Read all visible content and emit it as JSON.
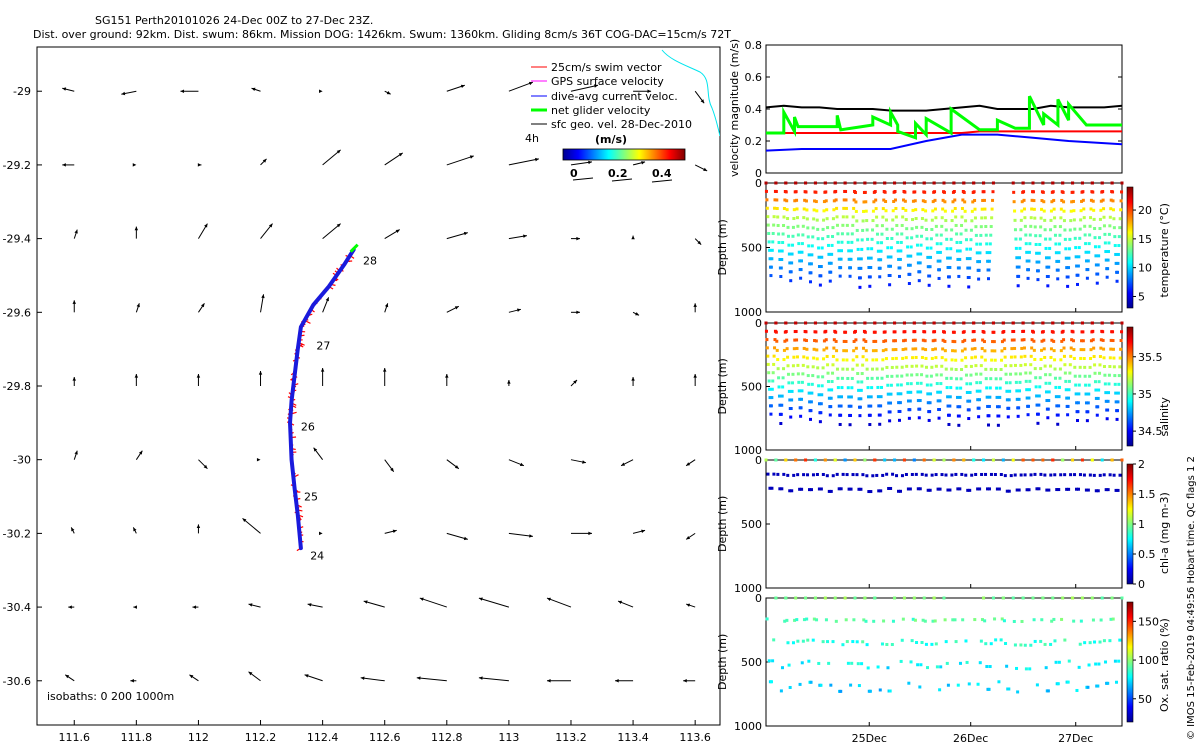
{
  "title": {
    "line1": "SG151 Perth20101026 24-Dec 00Z to 27-Dec 23Z.",
    "line2": "Dist. over ground: 92km. Dist. swum: 86km. Mission DOG: 1426km. Swum: 1360km. Gliding 8cm/s 36T COG-DAC=15cm/s 72T"
  },
  "copyright": "© IMOS 15-Feb-2019 04:49:56 Hobart time. QC flags 1  2",
  "colors": {
    "swim": "#ff0000",
    "gps": "#ff00ff",
    "dac": "#0000ff",
    "net": "#00ff00",
    "sfc": "#000000",
    "coast": "#00e5ee",
    "track": "#1a1adc"
  },
  "chart_data": [
    {
      "id": "map",
      "type": "scatter",
      "subtype": "quiver-map",
      "xlim": [
        111.48,
        113.68
      ],
      "ylim": [
        -30.72,
        -28.88
      ],
      "xticks": [
        "111.6",
        "111.8",
        "112",
        "112.2",
        "112.4",
        "112.6",
        "112.8",
        "113",
        "113.2",
        "113.4",
        "113.6"
      ],
      "xtick_values": [
        111.6,
        111.8,
        112.0,
        112.2,
        112.4,
        112.6,
        112.8,
        113.0,
        113.2,
        113.4,
        113.6
      ],
      "yticks": [
        "-29",
        "-29.2",
        "-29.4",
        "-29.6",
        "-29.8",
        "-30",
        "-30.2",
        "-30.4",
        "-30.6"
      ],
      "ytick_values": [
        -29.0,
        -29.2,
        -29.4,
        -29.6,
        -29.8,
        -30.0,
        -30.2,
        -30.4,
        -30.6
      ],
      "legend": [
        {
          "label": "25cm/s swim vector",
          "series": "swim"
        },
        {
          "label": "GPS surface velocity",
          "series": "gps"
        },
        {
          "label": "dive-avg current veloc.",
          "series": "dac"
        },
        {
          "label": "net glider velocity",
          "series": "net"
        },
        {
          "label": "sfc geo. vel. 28-Dec-2010",
          "series": "sfc"
        }
      ],
      "legend_4h": "4h",
      "colorbar": {
        "label": "(m/s)",
        "ticks": [
          "0",
          "0.2",
          "0.4"
        ],
        "tick_values": [
          0,
          0.2,
          0.4
        ],
        "range": [
          0,
          0.5
        ]
      },
      "isobaths_label": "isobaths: 0   200  1000m",
      "track": [
        {
          "lon": 112.33,
          "lat": -30.24
        },
        {
          "lon": 112.32,
          "lat": -30.15
        },
        {
          "lon": 112.31,
          "lat": -30.08
        },
        {
          "lon": 112.3,
          "lat": -30.0
        },
        {
          "lon": 112.295,
          "lat": -29.9
        },
        {
          "lon": 112.3,
          "lat": -29.84
        },
        {
          "lon": 112.31,
          "lat": -29.77
        },
        {
          "lon": 112.32,
          "lat": -29.7
        },
        {
          "lon": 112.33,
          "lat": -29.64
        },
        {
          "lon": 112.37,
          "lat": -29.58
        },
        {
          "lon": 112.42,
          "lat": -29.53
        },
        {
          "lon": 112.47,
          "lat": -29.47
        },
        {
          "lon": 112.5,
          "lat": -29.43
        }
      ],
      "day_labels": [
        {
          "text": "24",
          "lon": 112.36,
          "lat": -30.26
        },
        {
          "text": "25",
          "lon": 112.34,
          "lat": -30.1
        },
        {
          "text": "26",
          "lon": 112.33,
          "lat": -29.91
        },
        {
          "text": "27",
          "lon": 112.38,
          "lat": -29.69
        },
        {
          "text": "28",
          "lon": 112.53,
          "lat": -29.46
        }
      ],
      "sfc_vectors": [
        [
          -0.04,
          0.01,
          -0.05,
          -0.01,
          -0.06,
          0.0,
          -0.03,
          0.01,
          0.0,
          0.0,
          0.02,
          -0.01,
          0.06,
          0.02,
          0.08,
          0.03,
          0.09,
          0.02,
          0.06,
          0.0,
          0.03,
          -0.04
        ],
        [
          -0.04,
          0.0,
          0.0,
          0.0,
          0.01,
          0.0,
          0.02,
          0.02,
          0.06,
          0.05,
          0.06,
          0.04,
          0.09,
          0.03,
          0.1,
          0.02,
          0.07,
          0.01,
          0.04,
          0.01,
          0.04,
          -0.02
        ],
        [
          0.01,
          0.03,
          0.0,
          0.04,
          0.03,
          0.05,
          0.04,
          0.05,
          0.06,
          0.05,
          0.05,
          0.03,
          0.07,
          0.02,
          0.06,
          0.01,
          0.03,
          0.0,
          0.0,
          0.01,
          0.02,
          -0.02
        ],
        [
          0.0,
          0.04,
          0.01,
          0.03,
          0.02,
          0.03,
          0.01,
          0.06,
          0.02,
          0.05,
          0.01,
          0.03,
          0.04,
          0.02,
          0.04,
          0.01,
          0.03,
          0.0,
          0.02,
          -0.01,
          0.0,
          0.03
        ],
        [
          0.0,
          0.03,
          0.0,
          0.04,
          0.0,
          0.04,
          0.0,
          0.05,
          0.0,
          0.06,
          0.0,
          0.06,
          0.0,
          0.04,
          0.0,
          0.02,
          0.02,
          0.02,
          0.0,
          0.03,
          0.0,
          0.04
        ],
        [
          0.01,
          0.03,
          0.02,
          0.03,
          0.03,
          -0.03,
          0.0,
          0.0,
          -0.03,
          0.04,
          0.03,
          -0.04,
          0.04,
          -0.03,
          0.05,
          -0.02,
          0.05,
          -0.01,
          -0.04,
          -0.02,
          -0.03,
          -0.02
        ],
        [
          -0.01,
          0.02,
          -0.01,
          0.02,
          0.0,
          0.03,
          -0.06,
          0.05,
          0.0,
          0.0,
          0.04,
          0.01,
          0.07,
          -0.02,
          0.08,
          -0.01,
          0.07,
          0.0,
          0.04,
          0.01,
          -0.03,
          -0.02
        ],
        [
          -0.02,
          0.0,
          -0.01,
          0.0,
          -0.02,
          0.0,
          -0.04,
          0.01,
          -0.05,
          0.01,
          -0.07,
          0.02,
          -0.09,
          0.03,
          -0.1,
          0.03,
          -0.08,
          0.03,
          -0.05,
          0.02,
          -0.03,
          0.01
        ],
        [
          -0.03,
          0.02,
          -0.02,
          0.0,
          -0.03,
          0.02,
          -0.04,
          0.03,
          -0.06,
          0.02,
          -0.08,
          0.01,
          -0.1,
          0.01,
          -0.1,
          0.01,
          -0.08,
          0.0,
          -0.06,
          0.0,
          -0.04,
          0.0
        ]
      ]
    },
    {
      "id": "velocity",
      "type": "line",
      "ylabel": "velocity magnitude (m/s)",
      "xlim": [
        0,
        1
      ],
      "ylim": [
        0,
        0.8
      ],
      "yticks": [
        "0",
        "0.2",
        "0.4",
        "0.6",
        "0.8"
      ],
      "ytick_values": [
        0,
        0.2,
        0.4,
        0.6,
        0.8
      ],
      "series": [
        {
          "name": "sfc geo. vel.",
          "color": "#000000",
          "x": [
            0,
            0.05,
            0.1,
            0.15,
            0.2,
            0.25,
            0.3,
            0.35,
            0.4,
            0.45,
            0.5,
            0.55,
            0.6,
            0.65,
            0.7,
            0.75,
            0.8,
            0.85,
            0.9,
            0.95,
            1
          ],
          "y": [
            0.41,
            0.42,
            0.41,
            0.41,
            0.4,
            0.4,
            0.4,
            0.39,
            0.39,
            0.39,
            0.4,
            0.41,
            0.42,
            0.4,
            0.4,
            0.4,
            0.42,
            0.41,
            0.41,
            0.41,
            0.42
          ]
        },
        {
          "name": "swim",
          "color": "#ff0000",
          "x": [
            0,
            0.55,
            0.6,
            1
          ],
          "y": [
            0.25,
            0.25,
            0.26,
            0.26
          ]
        },
        {
          "name": "dac",
          "color": "#0000ff",
          "x": [
            0,
            0.1,
            0.25,
            0.35,
            0.45,
            0.55,
            0.65,
            0.75,
            0.85,
            1
          ],
          "y": [
            0.14,
            0.15,
            0.15,
            0.15,
            0.2,
            0.24,
            0.24,
            0.22,
            0.2,
            0.18
          ]
        },
        {
          "name": "net",
          "color": "#00ff00",
          "x": [
            0,
            0.05,
            0.05,
            0.08,
            0.08,
            0.09,
            0.09,
            0.2,
            0.2,
            0.21,
            0.21,
            0.3,
            0.3,
            0.35,
            0.35,
            0.37,
            0.37,
            0.42,
            0.42,
            0.45,
            0.45,
            0.52,
            0.52,
            0.6,
            0.6,
            0.65,
            0.65,
            0.7,
            0.7,
            0.74,
            0.74,
            0.78,
            0.78,
            0.82,
            0.82,
            0.85,
            0.85,
            0.9,
            0.9,
            1
          ],
          "y": [
            0.25,
            0.25,
            0.38,
            0.26,
            0.35,
            0.29,
            0.29,
            0.29,
            0.36,
            0.27,
            0.27,
            0.3,
            0.35,
            0.3,
            0.38,
            0.3,
            0.26,
            0.22,
            0.31,
            0.24,
            0.34,
            0.25,
            0.4,
            0.27,
            0.27,
            0.27,
            0.33,
            0.28,
            0.28,
            0.28,
            0.48,
            0.3,
            0.37,
            0.3,
            0.46,
            0.33,
            0.43,
            0.3,
            0.3,
            0.3
          ]
        }
      ]
    },
    {
      "id": "temperature",
      "type": "scatter",
      "subtype": "dive-section",
      "ylabel": "Depth (m)",
      "yticks": [
        "0",
        "500",
        "1000"
      ],
      "ytick_values": [
        0,
        500,
        1000
      ],
      "ylim": [
        0,
        1000
      ],
      "colorbar": {
        "label": "temperature (°C)",
        "ticks": [
          "20",
          "15",
          "10",
          "5"
        ],
        "tick_values": [
          20,
          15,
          10,
          5
        ],
        "range": [
          3,
          24
        ]
      },
      "dives": 36,
      "max_depth_m": 780,
      "gap_fraction": [
        0.63,
        0.68
      ],
      "surface_value": 23,
      "bottom_value": 6,
      "thermocline_depth_m": 250
    },
    {
      "id": "salinity",
      "type": "scatter",
      "subtype": "dive-section",
      "ylabel": "Depth (m)",
      "yticks": [
        "0",
        "500",
        "1000"
      ],
      "ytick_values": [
        0,
        500,
        1000
      ],
      "ylim": [
        0,
        1000
      ],
      "colorbar": {
        "label": "salinity",
        "ticks": [
          "35.5",
          "35",
          "34.5"
        ],
        "tick_values": [
          35.5,
          35,
          34.5
        ],
        "range": [
          34.3,
          35.9
        ]
      },
      "dives": 36,
      "max_depth_m": 780,
      "surface_value": 35.8,
      "bottom_value": 34.4
    },
    {
      "id": "chlorophyll",
      "type": "scatter",
      "subtype": "dive-section",
      "ylabel": "Depth (m)",
      "yticks": [
        "0",
        "500",
        "1000"
      ],
      "ytick_values": [
        0,
        500,
        1000
      ],
      "ylim": [
        0,
        1000
      ],
      "colorbar": {
        "label": "chl-a (mg m-3)",
        "ticks": [
          "2",
          "1.5",
          "1",
          "0.5",
          "0"
        ],
        "tick_values": [
          2,
          1.5,
          1,
          0.5,
          0
        ],
        "range": [
          0,
          2
        ]
      },
      "max_depth_m": 300,
      "typical_value": 0.1
    },
    {
      "id": "oxygen",
      "type": "scatter",
      "subtype": "dive-section",
      "ylabel": "Depth (m)",
      "yticks": [
        "0",
        "500",
        "1000"
      ],
      "ytick_values": [
        0,
        500,
        1000
      ],
      "ylim": [
        0,
        1000
      ],
      "xticks": [
        "25Dec",
        "26Dec",
        "27Dec"
      ],
      "xtick_values": [
        0.29,
        0.575,
        0.87
      ],
      "colorbar": {
        "label": "Ox. sat. ratio (%)",
        "ticks": [
          "150",
          "100",
          "50"
        ],
        "tick_values": [
          150,
          100,
          50
        ],
        "range": [
          20,
          175
        ]
      },
      "max_depth_m": 800,
      "surface_value": 90,
      "bottom_value": 60
    }
  ]
}
